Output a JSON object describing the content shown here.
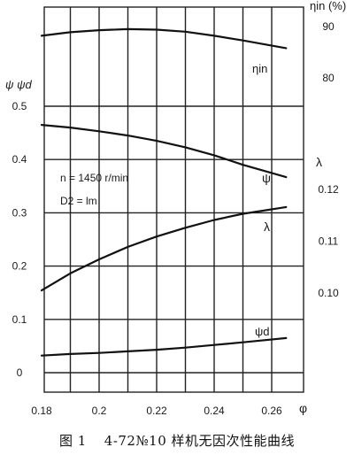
{
  "caption": {
    "figure_no": "图 1",
    "text": "4-72№10 样机无因次性能曲线"
  },
  "chart_data": {
    "type": "line",
    "x_axis": {
      "label": "φ",
      "ticks": [
        "0.18",
        "0.2",
        "0.22",
        "0.24",
        "0.26"
      ],
      "range": [
        0.18,
        0.27
      ]
    },
    "left_axis": {
      "label": "ψ ψd",
      "ticks": [
        "0",
        "0.1",
        "0.2",
        "0.3",
        "0.4",
        "0.5"
      ],
      "range": [
        0,
        0.6
      ]
    },
    "right_axis_eta": {
      "label": "ηin (%)",
      "ticks": [
        "80",
        "90"
      ],
      "range": [
        72,
        93
      ]
    },
    "right_axis_lambda": {
      "label": "λ",
      "ticks": [
        "0.10",
        "0.11",
        "0.12"
      ],
      "range": [
        0.091,
        0.131
      ]
    },
    "annotations": [
      "n = 1450 r/min",
      "D2 = lm"
    ],
    "grid": true,
    "series": [
      {
        "name": "ηin",
        "axis": "eta",
        "x": [
          0.18,
          0.19,
          0.2,
          0.21,
          0.22,
          0.23,
          0.24,
          0.25,
          0.265
        ],
        "y": [
          88.2,
          88.9,
          89.3,
          89.5,
          89.4,
          89.0,
          88.2,
          87.3,
          85.8
        ]
      },
      {
        "name": "ψ",
        "axis": "left",
        "x": [
          0.18,
          0.19,
          0.2,
          0.21,
          0.22,
          0.23,
          0.24,
          0.25,
          0.265
        ],
        "y": [
          0.465,
          0.46,
          0.453,
          0.445,
          0.435,
          0.423,
          0.408,
          0.39,
          0.367
        ]
      },
      {
        "name": "λ",
        "axis": "lambda",
        "x": [
          0.18,
          0.19,
          0.2,
          0.21,
          0.22,
          0.23,
          0.24,
          0.25,
          0.265
        ],
        "y": [
          0.1005,
          0.1038,
          0.1065,
          0.1089,
          0.1109,
          0.1126,
          0.1141,
          0.1153,
          0.1166
        ]
      },
      {
        "name": "ψd",
        "axis": "left",
        "x": [
          0.18,
          0.19,
          0.2,
          0.21,
          0.22,
          0.23,
          0.24,
          0.25,
          0.265
        ],
        "y": [
          0.032,
          0.035,
          0.037,
          0.04,
          0.043,
          0.047,
          0.052,
          0.057,
          0.065
        ]
      }
    ]
  }
}
